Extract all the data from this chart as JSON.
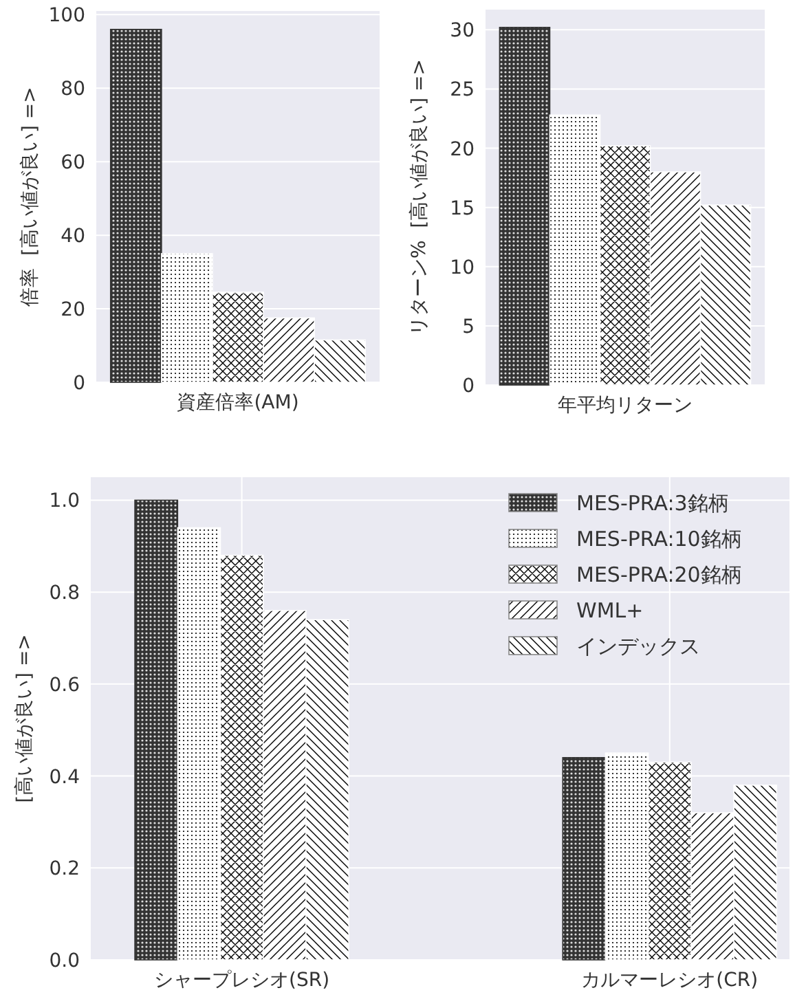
{
  "chart_data": [
    {
      "type": "bar",
      "categories": [
        null,
        null,
        null,
        null,
        null
      ],
      "xlabel": "資産倍率(AM)",
      "ylabel": "倍率  [高い値が良い] =>",
      "ylim": [
        0,
        101
      ],
      "yticks": [
        0,
        20,
        40,
        60,
        80,
        100
      ],
      "grid": "y",
      "values": [
        96,
        35,
        24.5,
        17.5,
        11.5
      ],
      "colors": [
        "#333333",
        "#ffffff",
        "#ffffff",
        "#ffffff",
        "#ffffff"
      ]
    },
    {
      "type": "bar",
      "categories": [
        null,
        null,
        null,
        null,
        null
      ],
      "xlabel": "年平均リターン",
      "ylabel": "リターン%  [高い値が良い] =>",
      "ylim": [
        0,
        31.7
      ],
      "yticks": [
        0,
        5,
        10,
        15,
        20,
        25,
        30
      ],
      "grid": "y",
      "values": [
        30.2,
        22.8,
        20.2,
        18,
        15.2
      ],
      "colors": [
        "#333333",
        "#ffffff",
        "#ffffff",
        "#ffffff",
        "#ffffff"
      ]
    },
    {
      "type": "bar",
      "categories": [
        "シャープレシオ(SR)",
        "カルマーレシオ(CR)"
      ],
      "ylabel": "[高い値が良い] =>",
      "ylim": [
        0,
        1.05
      ],
      "yticks": [
        {
          "value": 0,
          "label": "0.0"
        },
        0.2,
        0.4,
        0.6,
        0.8,
        {
          "value": 1,
          "label": "1.0"
        }
      ],
      "grid": true,
      "legend": "top right",
      "series": [
        {
          "name": "MES-PRA:3銘柄",
          "color": "#333333",
          "values": [
            1.0,
            0.44
          ]
        },
        {
          "name": "MES-PRA:10銘柄",
          "color": "#ffffff",
          "values": [
            0.94,
            0.45
          ]
        },
        {
          "name": "MES-PRA:20銘柄",
          "color": "#ffffff",
          "values": [
            0.88,
            0.43
          ]
        },
        {
          "name": "WML+",
          "color": "#ffffff",
          "values": [
            0.76,
            0.32
          ]
        },
        {
          "name": "インデックス",
          "color": "#ffffff",
          "values": [
            0.74,
            0.38
          ]
        }
      ]
    }
  ]
}
